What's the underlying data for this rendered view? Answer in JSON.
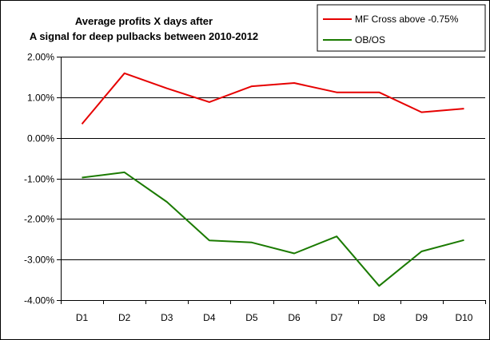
{
  "chart_data": {
    "type": "line",
    "title_lines": [
      "Average profits X days after",
      "A signal for deep pulbacks between 2010-2012"
    ],
    "categories": [
      "D1",
      "D2",
      "D3",
      "D4",
      "D5",
      "D6",
      "D7",
      "D8",
      "D9",
      "D10"
    ],
    "y_tick_labels": [
      "2.00%",
      "1.00%",
      "0.00%",
      "-1.00%",
      "-2.00%",
      "-3.00%",
      "-4.00%"
    ],
    "ylim": [
      -4.0,
      2.0
    ],
    "y_tick_step": 1.0,
    "grid": true,
    "legend_position": "top-right",
    "series": [
      {
        "name": "MF Cross above -0.75%",
        "color": "#e60000",
        "values": [
          0.34,
          1.59,
          1.22,
          0.88,
          1.27,
          1.35,
          1.12,
          1.12,
          0.63,
          0.72
        ]
      },
      {
        "name": "OB/OS",
        "color": "#1a7a00",
        "values": [
          -0.98,
          -0.85,
          -1.58,
          -2.53,
          -2.58,
          -2.85,
          -2.43,
          -3.65,
          -2.8,
          -2.52
        ]
      }
    ]
  }
}
